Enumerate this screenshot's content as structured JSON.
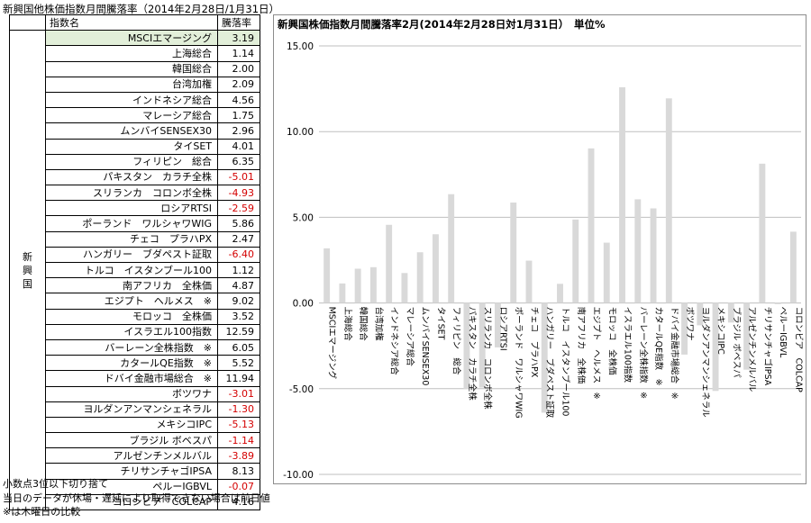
{
  "page_title": "新興国他株価指数月間騰落率（2014年2月28日/1月31日）",
  "table": {
    "col_name": "指数名",
    "col_value": "騰落率",
    "group_label": [
      "新",
      "興",
      "国"
    ],
    "rows": [
      {
        "name": "MSCIエマージング",
        "value": "3.19"
      },
      {
        "name": "上海総合",
        "value": "1.14"
      },
      {
        "name": "韓国総合",
        "value": "2.00"
      },
      {
        "name": "台湾加権",
        "value": "2.09"
      },
      {
        "name": "インドネシア総合",
        "value": "4.56"
      },
      {
        "name": "マレーシア総合",
        "value": "1.75"
      },
      {
        "name": "ムンバイSENSEX30",
        "value": "2.96"
      },
      {
        "name": "タイSET",
        "value": "4.01"
      },
      {
        "name": "フィリピン　総合",
        "value": "6.35"
      },
      {
        "name": "パキスタン　カラチ全株",
        "value": "-5.01"
      },
      {
        "name": "スリランカ　コロンボ全株",
        "value": "-4.93"
      },
      {
        "name": "ロシアRTSI",
        "value": "-2.59"
      },
      {
        "name": "ポーランド　ワルシャワWIG",
        "value": "5.86"
      },
      {
        "name": "チェコ　プラハPX",
        "value": "2.47"
      },
      {
        "name": "ハンガリー　ブダペスト証取",
        "value": "-6.40"
      },
      {
        "name": "トルコ　イスタンブール100",
        "value": "1.12"
      },
      {
        "name": "南アフリカ　全株価",
        "value": "4.87"
      },
      {
        "name": "エジプト　ヘルメス　※",
        "value": "9.02"
      },
      {
        "name": "モロッコ　全株価",
        "value": "3.52"
      },
      {
        "name": "イスラエル100指数",
        "value": "12.59"
      },
      {
        "name": "バーレーン全株指数　※",
        "value": "6.05"
      },
      {
        "name": "カタールQE指数　※",
        "value": "5.52"
      },
      {
        "name": "ドバイ金融市場総合　※",
        "value": "11.94"
      },
      {
        "name": "ボツワナ",
        "value": "-3.01"
      },
      {
        "name": "ヨルダンアンマンシェネラル",
        "value": "-1.30"
      },
      {
        "name": "メキシコIPC",
        "value": "-5.13"
      },
      {
        "name": "ブラジル ボベスパ",
        "value": "-1.14"
      },
      {
        "name": "アルゼンチンメルバル",
        "value": "-3.89"
      },
      {
        "name": "チリサンチャゴIPSA",
        "value": "8.13"
      },
      {
        "name": "ペルーIGBVL",
        "value": "-0.07"
      },
      {
        "name": "コロンビア　COLCAP",
        "value": "4.16"
      }
    ]
  },
  "notes": [
    "小数点3位以下切り捨て",
    "当日のデータが休場・遅延により取得できない場合は前日値",
    "※は木曜日の比較"
  ],
  "colors": {
    "bar": "#d9d9d9",
    "negative_text": "#d40000",
    "highlight": "#e2efd9",
    "grid": "#bfbfbf"
  },
  "chart_data": {
    "type": "bar",
    "title": "新興国株価指数月間騰落率2月(2014年2月28日対1月31日）　単位%",
    "ylim": [
      -10,
      15
    ],
    "yticks": [
      "15.00",
      "10.00",
      "5.00",
      "0.00",
      "-5.00",
      "-10.00"
    ],
    "ytick_values": [
      15,
      10,
      5,
      0,
      -5,
      -10
    ],
    "grid": true,
    "categories": [
      "MSCIエマージング",
      "上海総合",
      "韓国総合",
      "台湾加権",
      "インドネシア総合",
      "マレーシア総合",
      "ムンバイSENSEX30",
      "タイSET",
      "フィリピン　総合",
      "パキスタン　カラチ全株",
      "スリランカ　コロンボ全株",
      "ロシアRTSI",
      "ポーランド　ワルシャワWIG",
      "チェコ　プラハPX",
      "ハンガリー　ブダペスト証取",
      "トルコ　イスタンブール100",
      "南アフリカ　全株価",
      "エジプト　ヘルメス　※",
      "モロッコ　全株価",
      "イスラエル100指数",
      "バーレーン全株指数　※",
      "カタールQE指数　※",
      "ドバイ金融市場総合　※",
      "ボツワナ",
      "ヨルダンアンマンシェネラル",
      "メキシコIPC",
      "ブラジル ボベスパ",
      "アルゼンチンメルバル",
      "チリサンチャゴIPSA",
      "ペルーIGBVL",
      "コロンビア　COLCAP"
    ],
    "values": [
      3.19,
      1.14,
      2.0,
      2.09,
      4.56,
      1.75,
      2.96,
      4.01,
      6.35,
      -5.01,
      -4.93,
      -2.59,
      5.86,
      2.47,
      -6.4,
      1.12,
      4.87,
      9.02,
      3.52,
      12.59,
      6.05,
      5.52,
      11.94,
      -3.01,
      -1.3,
      -5.13,
      -1.14,
      -3.89,
      8.13,
      -0.07,
      4.16
    ]
  }
}
